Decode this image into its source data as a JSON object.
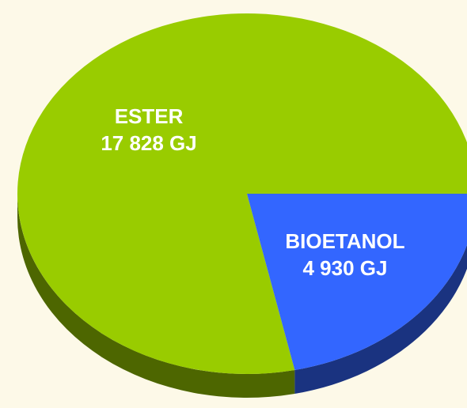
{
  "chart_data": {
    "type": "pie",
    "categories": [
      "ESTER",
      "BIOETANOL"
    ],
    "values": [
      17828,
      4930
    ],
    "value_labels": [
      "17 828 GJ",
      "4 930 GJ"
    ],
    "colors": [
      "#99cc00",
      "#3366ff"
    ]
  }
}
